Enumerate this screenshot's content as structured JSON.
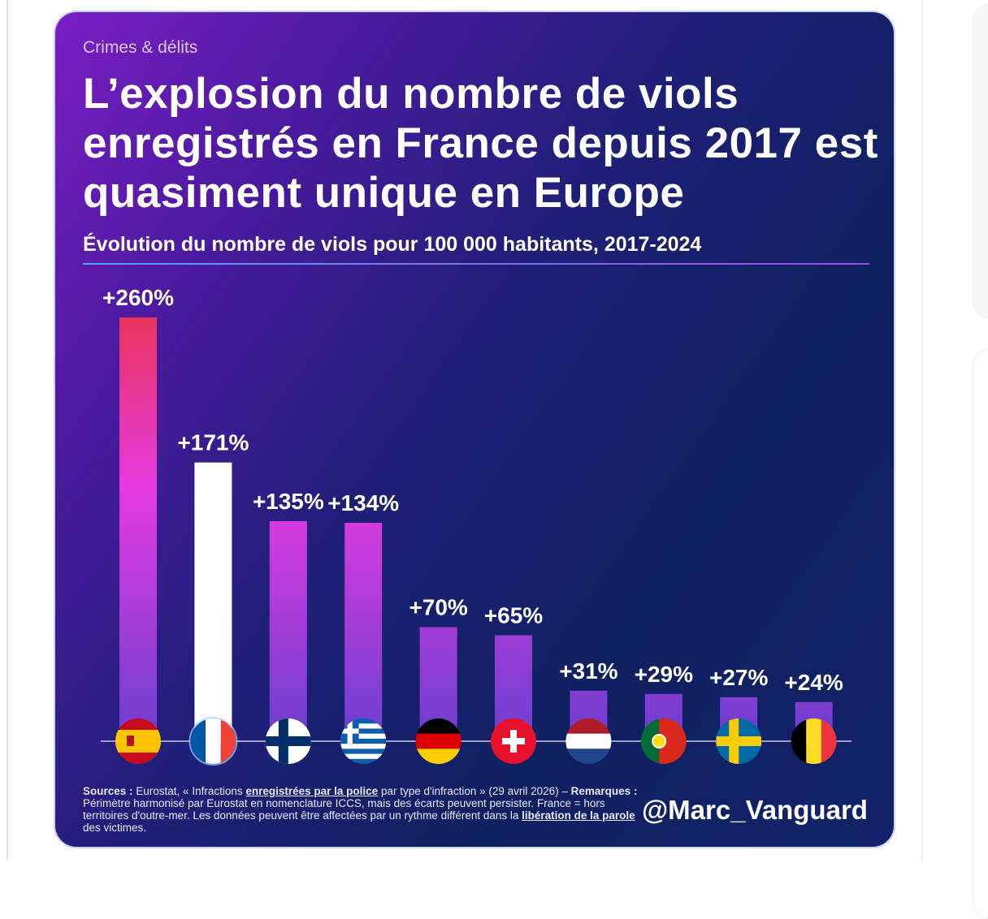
{
  "category": "Crimes & délits",
  "title": "L’explosion du nombre de viols enregistrés en France depuis 2017 est quasiment unique en Europe",
  "footer": {
    "sources_label": "Sources :",
    "t1": " Eurostat, « Infractions ",
    "link1": "enregistrées par la police",
    "t2": " par type d'infraction » (29 avril 2026) – ",
    "remarks_label": "Remarques :",
    "t3": " Périmètre harmonisé par Eurostat en nomenclature ICCS, mais des écarts peuvent persister. France = hors territoires d'outre-mer. Les données peuvent être affectées par un rythme différent dans la ",
    "link2": "libération de la parole",
    "t4": " des victimes.",
    "handle": "@Marc_Vanguard"
  },
  "chart_data": {
    "type": "bar",
    "title": "Évolution du nombre de viols pour 100 000 habitants, 2017-2024",
    "unit": "%",
    "categories": [
      "flag-spain",
      "flag-france",
      "flag-finland",
      "flag-greece",
      "flag-germany",
      "flag-switzerland",
      "flag-netherlands",
      "flag-portugal",
      "flag-sweden",
      "flag-belgium"
    ],
    "values": [
      260,
      171,
      135,
      134,
      70,
      65,
      31,
      29,
      27,
      24
    ],
    "labels": [
      "+260%",
      "+171%",
      "+135%",
      "+134%",
      "+70%",
      "+65%",
      "+31%",
      "+29%",
      "+27%",
      "+24%"
    ],
    "highlight": "flag-france",
    "ylim": [
      0,
      260
    ],
    "colors": {
      "bar_top": "#e8345c",
      "bar_mid": "#e63ae0",
      "bar_bottom": "#6a3fcf",
      "highlight": "#ffffff"
    }
  }
}
